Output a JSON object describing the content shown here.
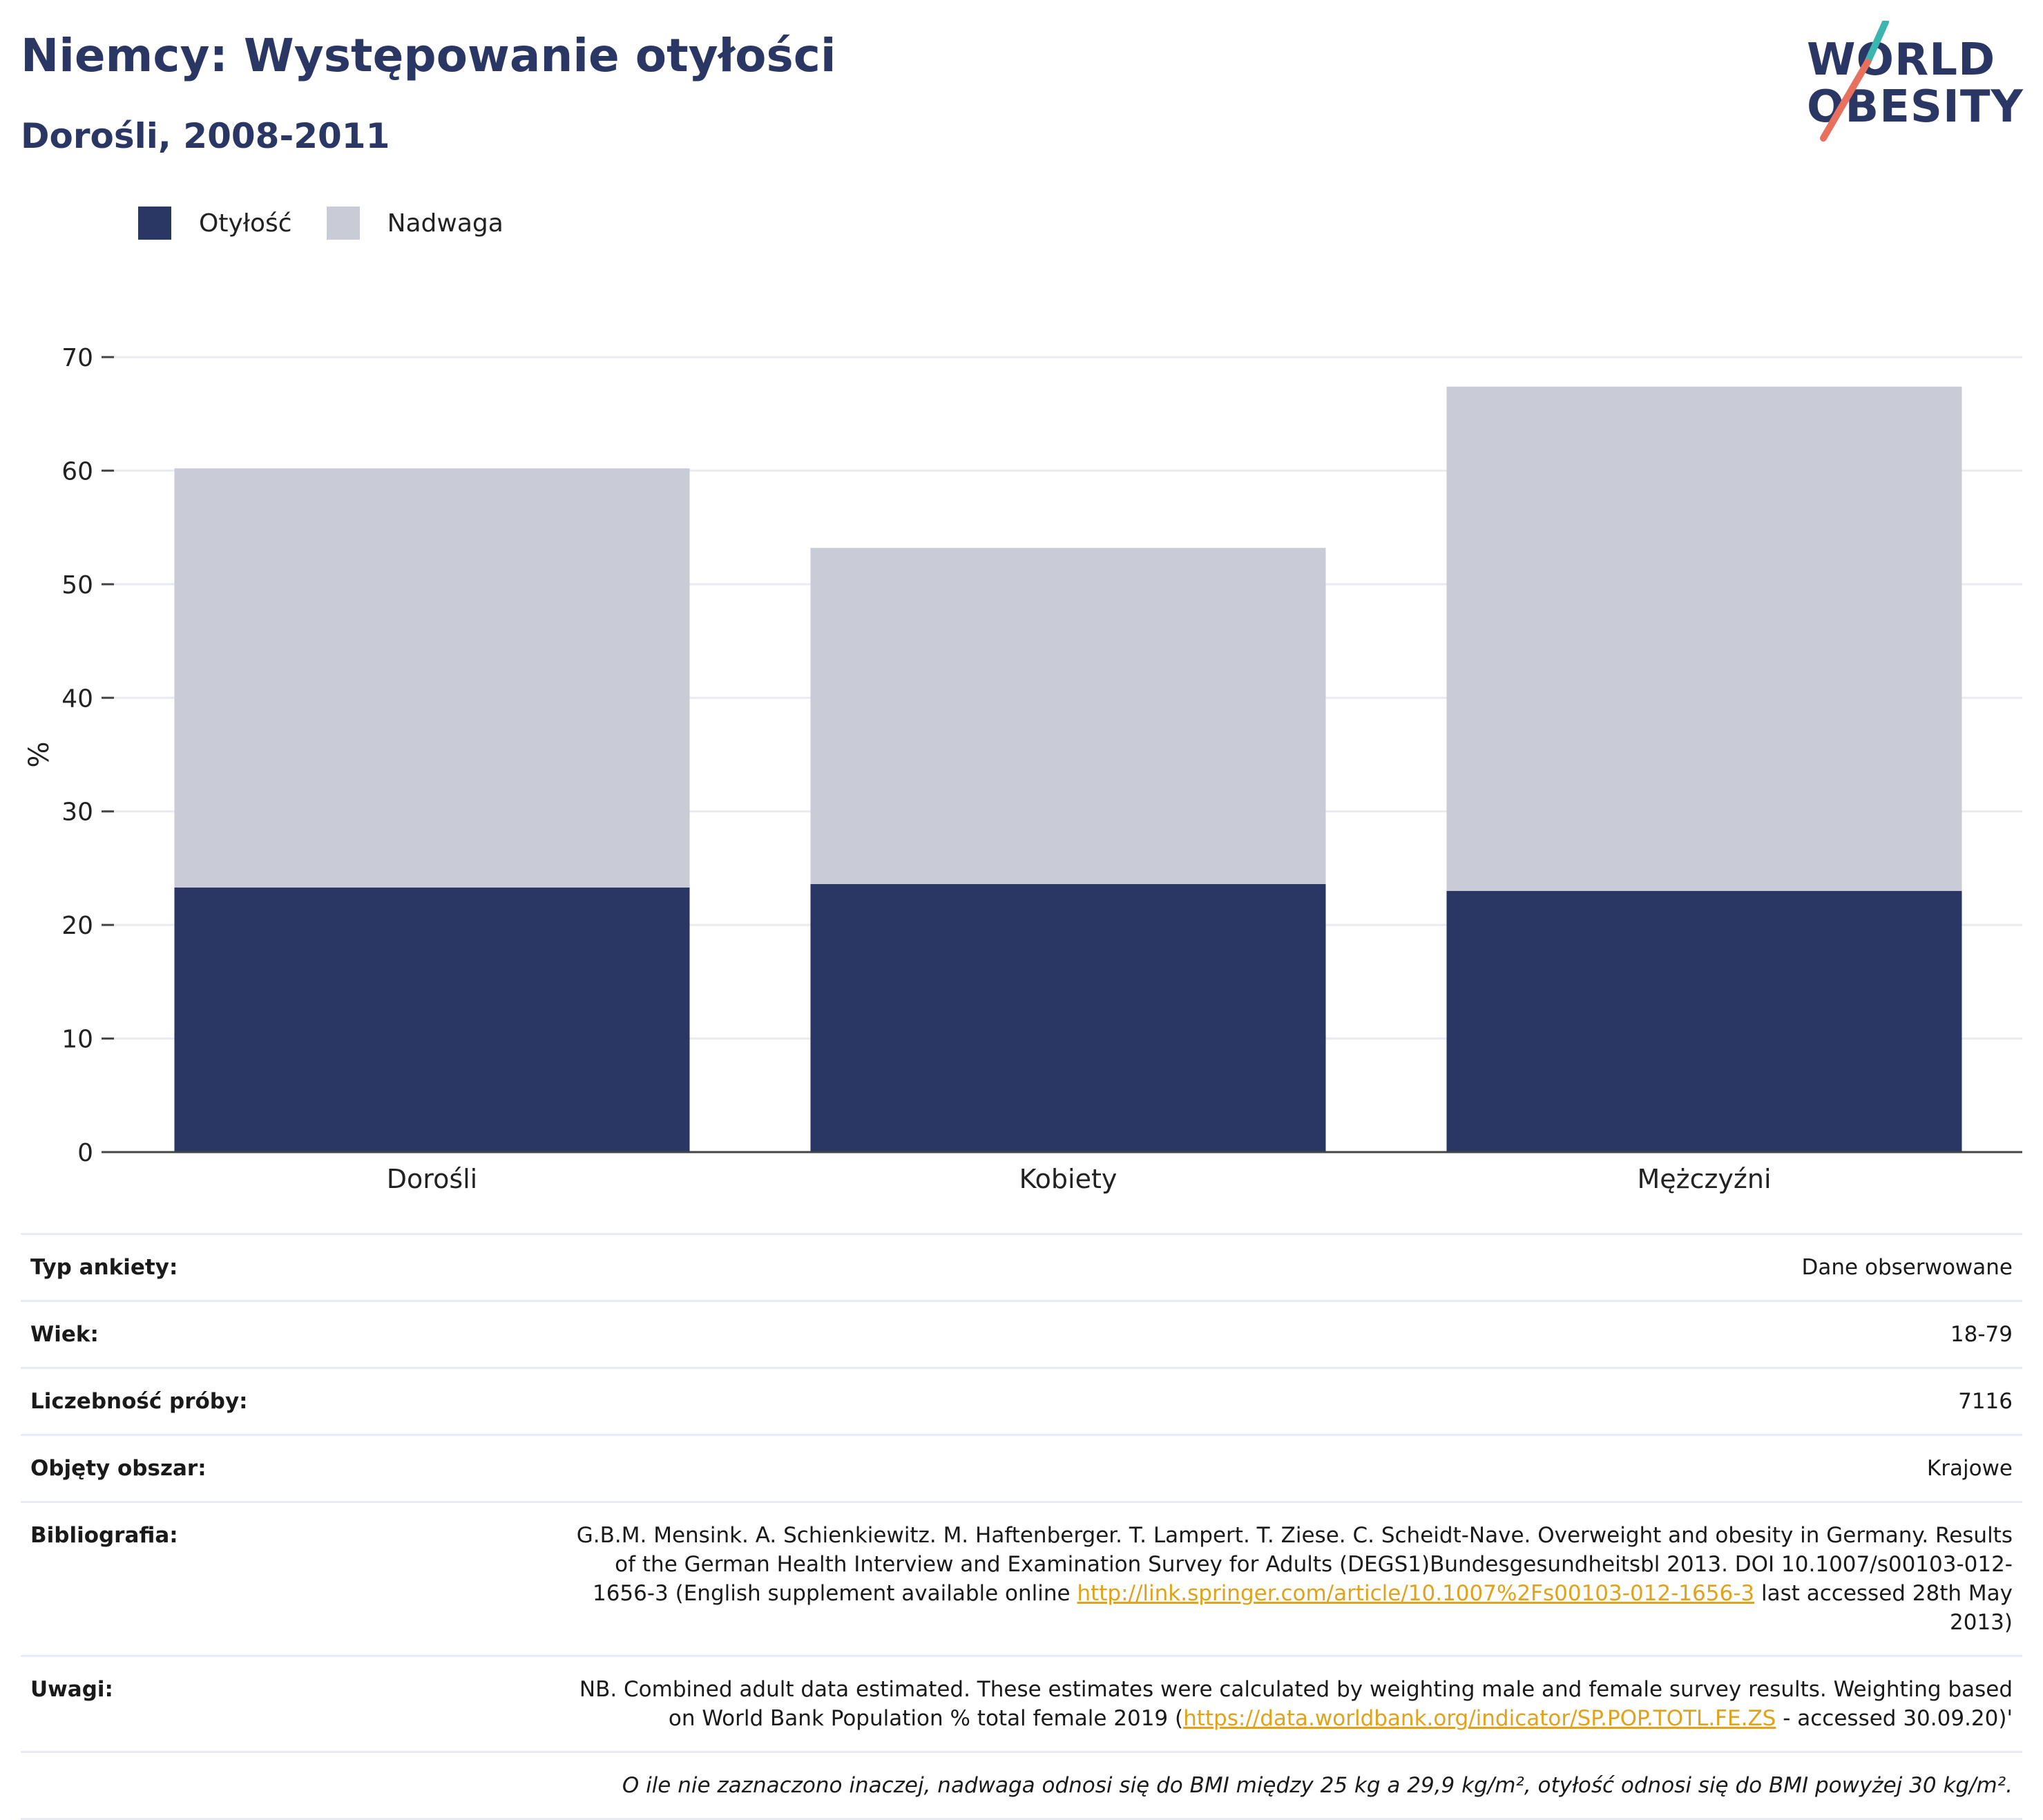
{
  "header": {
    "title": "Niemcy: Występowanie otyłości",
    "subtitle": "Dorośli, 2008-2011"
  },
  "logo": {
    "line1": "WORLD",
    "line2": "OBESITY",
    "colors": {
      "navy": "#2a3663",
      "teal": "#3ab5b0",
      "coral": "#e8705e"
    }
  },
  "legend": [
    {
      "label": "Otyłość",
      "color": "#2a3663"
    },
    {
      "label": "Nadwaga",
      "color": "#c9cbd6"
    }
  ],
  "chart_data": {
    "type": "bar",
    "stacked": true,
    "categories": [
      "Dorośli",
      "Kobiety",
      "Mężczyźni"
    ],
    "series": [
      {
        "name": "Otyłość",
        "values": [
          23.3,
          23.6,
          23.0
        ],
        "color": "#2a3663"
      },
      {
        "name": "Nadwaga",
        "values": [
          36.9,
          29.6,
          44.4
        ],
        "color": "#c9cbd6"
      }
    ],
    "ylabel": "%",
    "ylim": [
      0,
      70
    ],
    "yticks": [
      0,
      10,
      20,
      30,
      40,
      50,
      60,
      70
    ],
    "grid": true,
    "legend_position": "top-left"
  },
  "info": {
    "survey_type": {
      "key": "Typ ankiety:",
      "value": "Dane obserwowane"
    },
    "age": {
      "key": "Wiek:",
      "value": "18-79"
    },
    "sample": {
      "key": "Liczebność próby:",
      "value": "7116"
    },
    "area": {
      "key": "Objęty obszar:",
      "value": "Krajowe"
    },
    "bibliography": {
      "key": "Bibliografia:",
      "text_before": "G.B.M. Mensink. A. Schienkiewitz. M. Haftenberger. T. Lampert. T. Ziese. C. Scheidt-Nave. Overweight and obesity in Germany. Results of the German Health Interview and Examination Survey for Adults (DEGS1)Bundesgesundheitsbl 2013. DOI 10.1007/s00103-012-1656-3 (English supplement available online ",
      "link": "http://link.springer.com/article/10.1007%2Fs00103-012-1656-3",
      "text_after": " last accessed 28th May 2013)"
    },
    "notes": {
      "key": "Uwagi:",
      "text_before": "NB. Combined adult data estimated. These estimates were calculated by weighting male and female survey results. Weighting based on World Bank Population % total female 2019 (",
      "link": "https://data.worldbank.org/indicator/SP.POP.TOTL.FE.ZS",
      "text_after": " - accessed 30.09.20)'"
    },
    "footnote": "O ile nie zaznaczono inaczej, nadwaga odnosi się do BMI między 25 kg a 29,9 kg/m², otyłość odnosi się do BMI powyżej 30 kg/m²."
  }
}
